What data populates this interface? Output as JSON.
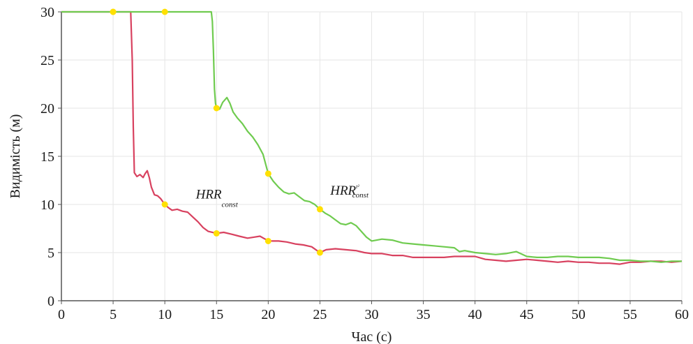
{
  "chart_data": {
    "type": "line",
    "title": "",
    "xlabel": "Час (с)",
    "ylabel": "Видимість (м)",
    "xlim": [
      0,
      60
    ],
    "ylim": [
      0,
      30
    ],
    "xticks": [
      0,
      5,
      10,
      15,
      20,
      25,
      30,
      35,
      40,
      45,
      50,
      55,
      60
    ],
    "yticks": [
      0,
      5,
      10,
      15,
      20,
      25,
      30
    ],
    "grid": true,
    "legend": "none",
    "colors": {
      "grid": "#e6e6e6",
      "axis": "#555555",
      "marker": "#ffe000"
    },
    "annotations": [
      {
        "main": "HRR",
        "sub": "const",
        "sup": "",
        "x": 13.0,
        "y": 10.6
      },
      {
        "main": "HRR",
        "sub": "const",
        "sup": "t²",
        "x": 26.0,
        "y": 11.0
      }
    ],
    "series": [
      {
        "color": "#d8415f",
        "points": [
          [
            0,
            30
          ],
          [
            6.7,
            30
          ],
          [
            6.85,
            25
          ],
          [
            6.95,
            18
          ],
          [
            7.05,
            13.3
          ],
          [
            7.3,
            12.9
          ],
          [
            7.6,
            13.1
          ],
          [
            7.9,
            12.8
          ],
          [
            8.1,
            13.2
          ],
          [
            8.3,
            13.5
          ],
          [
            8.5,
            12.8
          ],
          [
            8.7,
            11.8
          ],
          [
            9.0,
            11.0
          ],
          [
            9.3,
            10.9
          ],
          [
            9.6,
            10.6
          ],
          [
            9.8,
            10.3
          ],
          [
            10.0,
            10.0
          ],
          [
            10.3,
            9.7
          ],
          [
            10.7,
            9.4
          ],
          [
            11.2,
            9.5
          ],
          [
            11.7,
            9.3
          ],
          [
            12.2,
            9.2
          ],
          [
            12.7,
            8.7
          ],
          [
            13.2,
            8.2
          ],
          [
            13.7,
            7.6
          ],
          [
            14.2,
            7.2
          ],
          [
            15.0,
            7.0
          ],
          [
            15.7,
            7.1
          ],
          [
            16.5,
            6.9
          ],
          [
            17.2,
            6.7
          ],
          [
            18.0,
            6.5
          ],
          [
            18.6,
            6.6
          ],
          [
            19.2,
            6.7
          ],
          [
            19.7,
            6.4
          ],
          [
            20.2,
            6.2
          ],
          [
            21.0,
            6.2
          ],
          [
            21.8,
            6.1
          ],
          [
            22.6,
            5.9
          ],
          [
            23.4,
            5.8
          ],
          [
            24.2,
            5.6
          ],
          [
            25.0,
            5.0
          ],
          [
            25.6,
            5.3
          ],
          [
            26.5,
            5.4
          ],
          [
            27.5,
            5.3
          ],
          [
            28.5,
            5.2
          ],
          [
            29.3,
            5.0
          ],
          [
            30.0,
            4.9
          ],
          [
            31.0,
            4.9
          ],
          [
            32.0,
            4.7
          ],
          [
            33.0,
            4.7
          ],
          [
            34.0,
            4.5
          ],
          [
            35.0,
            4.5
          ],
          [
            36.0,
            4.5
          ],
          [
            37.0,
            4.5
          ],
          [
            38.0,
            4.6
          ],
          [
            39.0,
            4.6
          ],
          [
            40.0,
            4.6
          ],
          [
            41.0,
            4.3
          ],
          [
            42.0,
            4.2
          ],
          [
            43.0,
            4.1
          ],
          [
            44.0,
            4.2
          ],
          [
            45.0,
            4.3
          ],
          [
            46.0,
            4.2
          ],
          [
            47.0,
            4.1
          ],
          [
            48.0,
            4.0
          ],
          [
            49.0,
            4.1
          ],
          [
            50.0,
            4.0
          ],
          [
            51.0,
            4.0
          ],
          [
            52.0,
            3.9
          ],
          [
            53.0,
            3.9
          ],
          [
            54.0,
            3.8
          ],
          [
            55.0,
            4.0
          ],
          [
            56.0,
            4.0
          ],
          [
            57.0,
            4.1
          ],
          [
            58.0,
            4.1
          ],
          [
            59.0,
            4.0
          ],
          [
            60.0,
            4.1
          ]
        ],
        "markers": [
          [
            5,
            30
          ],
          [
            10,
            10
          ],
          [
            15,
            7
          ],
          [
            20,
            6.2
          ],
          [
            25,
            5
          ]
        ]
      },
      {
        "color": "#6fcb4f",
        "points": [
          [
            0,
            30
          ],
          [
            14.5,
            30
          ],
          [
            14.6,
            29
          ],
          [
            14.7,
            26
          ],
          [
            14.8,
            22
          ],
          [
            14.9,
            20.5
          ],
          [
            15.0,
            20.0
          ],
          [
            15.3,
            19.9
          ],
          [
            15.6,
            20.6
          ],
          [
            16.0,
            21.1
          ],
          [
            16.3,
            20.5
          ],
          [
            16.6,
            19.6
          ],
          [
            17.0,
            19.0
          ],
          [
            17.5,
            18.4
          ],
          [
            18.0,
            17.6
          ],
          [
            18.5,
            17.0
          ],
          [
            19.0,
            16.2
          ],
          [
            19.5,
            15.2
          ],
          [
            20.0,
            13.2
          ],
          [
            20.5,
            12.4
          ],
          [
            21.0,
            11.8
          ],
          [
            21.5,
            11.3
          ],
          [
            22.0,
            11.1
          ],
          [
            22.5,
            11.2
          ],
          [
            23.0,
            10.8
          ],
          [
            23.5,
            10.4
          ],
          [
            24.0,
            10.3
          ],
          [
            24.5,
            10.0
          ],
          [
            25.0,
            9.5
          ],
          [
            25.5,
            9.1
          ],
          [
            26.0,
            8.8
          ],
          [
            26.5,
            8.4
          ],
          [
            27.0,
            8.0
          ],
          [
            27.5,
            7.9
          ],
          [
            28.0,
            8.1
          ],
          [
            28.5,
            7.8
          ],
          [
            29.0,
            7.2
          ],
          [
            29.5,
            6.6
          ],
          [
            30.0,
            6.2
          ],
          [
            31.0,
            6.4
          ],
          [
            32.0,
            6.3
          ],
          [
            33.0,
            6.0
          ],
          [
            34.0,
            5.9
          ],
          [
            35.0,
            5.8
          ],
          [
            36.0,
            5.7
          ],
          [
            37.0,
            5.6
          ],
          [
            38.0,
            5.5
          ],
          [
            38.5,
            5.1
          ],
          [
            39.0,
            5.2
          ],
          [
            40.0,
            5.0
          ],
          [
            41.0,
            4.9
          ],
          [
            42.0,
            4.8
          ],
          [
            43.0,
            4.9
          ],
          [
            44.0,
            5.1
          ],
          [
            45.0,
            4.6
          ],
          [
            46.0,
            4.5
          ],
          [
            47.0,
            4.5
          ],
          [
            48.0,
            4.6
          ],
          [
            49.0,
            4.6
          ],
          [
            50.0,
            4.5
          ],
          [
            51.0,
            4.5
          ],
          [
            52.0,
            4.5
          ],
          [
            53.0,
            4.4
          ],
          [
            54.0,
            4.2
          ],
          [
            55.0,
            4.2
          ],
          [
            56.0,
            4.1
          ],
          [
            57.0,
            4.1
          ],
          [
            58.0,
            4.0
          ],
          [
            59.0,
            4.1
          ],
          [
            60.0,
            4.1
          ]
        ],
        "markers": [
          [
            5,
            30
          ],
          [
            10,
            30
          ],
          [
            15,
            20
          ],
          [
            20,
            13.2
          ],
          [
            25,
            9.5
          ]
        ]
      }
    ]
  }
}
